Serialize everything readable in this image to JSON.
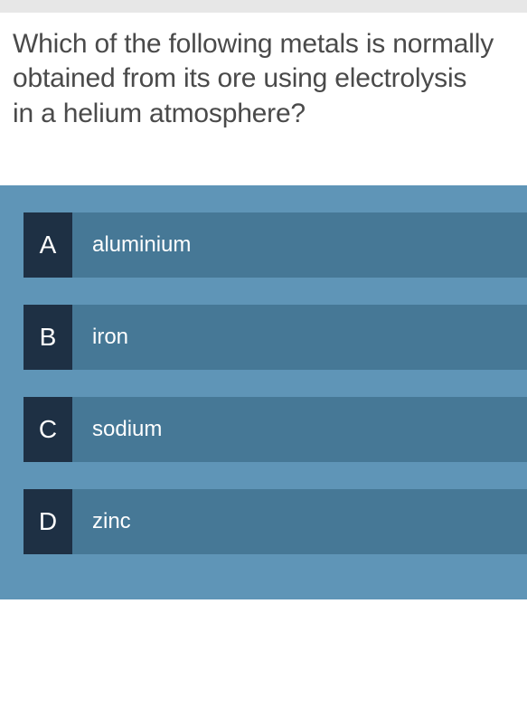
{
  "question": {
    "line1": "Which of the following metals is normally obtained from its ore using electrolysis",
    "line2": "in a helium atmosphere?"
  },
  "colors": {
    "page_bg": "#ffffff",
    "top_bar_bg": "#e7e7e7",
    "question_text": "#4a4a4a",
    "answers_panel_bg": "#5f95b7",
    "letter_bg": "#1e3044",
    "answer_bg": "#467896",
    "answer_text": "#ffffff"
  },
  "typography": {
    "question_fontsize": 30,
    "answer_letter_fontsize": 28,
    "answer_text_fontsize": 24,
    "font_weight": 300
  },
  "options": [
    {
      "letter": "A",
      "text": "aluminium"
    },
    {
      "letter": "B",
      "text": "iron"
    },
    {
      "letter": "C",
      "text": "sodium"
    },
    {
      "letter": "D",
      "text": "zinc"
    }
  ]
}
